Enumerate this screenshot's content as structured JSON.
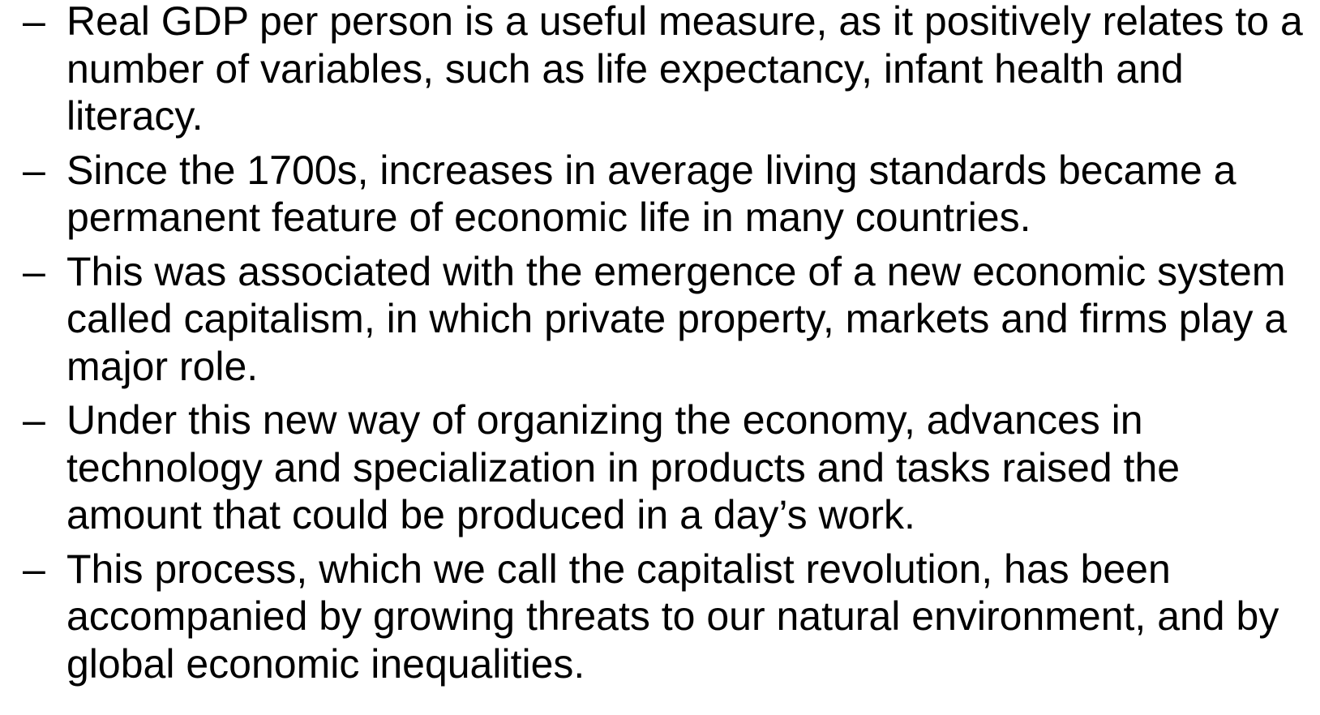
{
  "bullets": [
    {
      "lines": [
        "Real GDP per person is a useful measure, as it positively relates to a",
        "number of variables, such as life expectancy, infant health and",
        "literacy."
      ]
    },
    {
      "lines": [
        "Since the 1700s, increases in average living standards became a",
        "permanent feature of economic life in many countries."
      ]
    },
    {
      "lines": [
        "This was associated with the emergence of a new economic system",
        "called capitalism, in which private property, markets and firms play a",
        "major role."
      ]
    },
    {
      "lines": [
        "Under this new way of organizing the economy, advances in",
        "technology and specialization in products and tasks raised the",
        "amount that could be produced in a day’s work."
      ]
    },
    {
      "lines": [
        "This process, which we call the capitalist revolution, has been",
        "accompanied by growing threats to our natural environment, and by",
        "global economic inequalities."
      ]
    }
  ]
}
